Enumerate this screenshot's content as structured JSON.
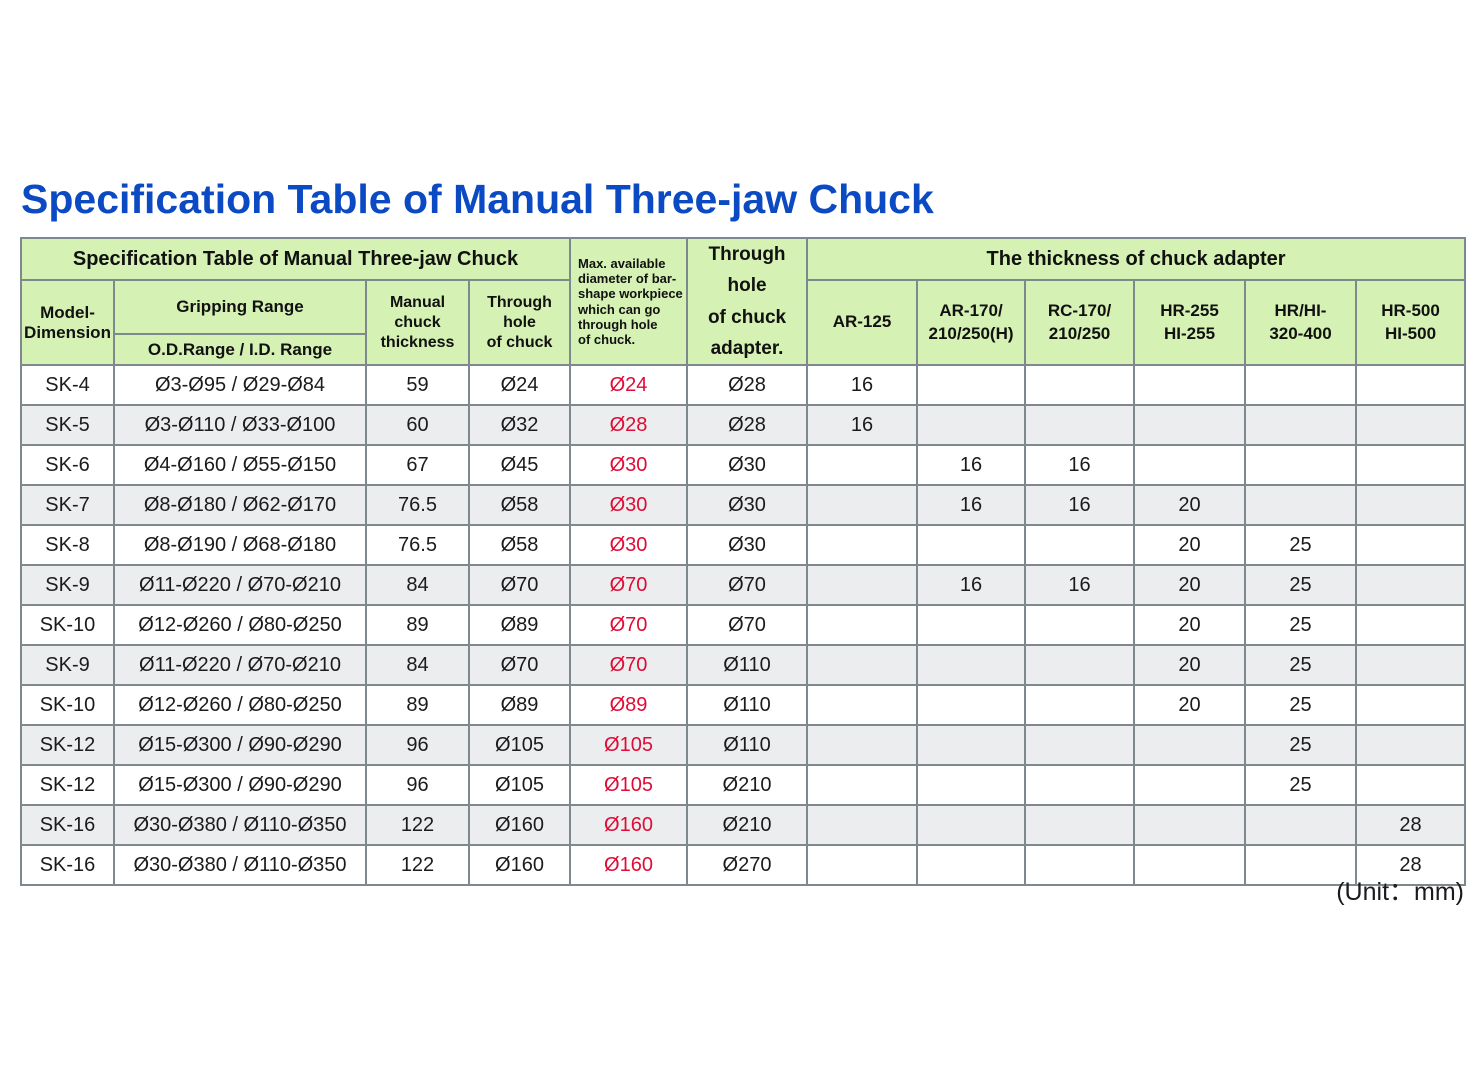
{
  "page": {
    "title": "Specification Table of Manual Three-jaw Chuck",
    "unit_note": "(Unit：mm)"
  },
  "colors": {
    "title_blue": "#0b4ac2",
    "header_green": "#d5f1b3",
    "alt_row_gray": "#ebedee",
    "red_value": "#e00b36",
    "border_gray": "#7d898d"
  },
  "table": {
    "header": {
      "spec_title": "Specification Table of Manual Three-jaw Chuck",
      "model": "Model-\nDimension",
      "gripping": "Gripping Range",
      "od_id": "O.D.Range  /  I.D. Range",
      "manual_thickness": "Manual\nchuck\nthickness",
      "through_hole": "Through\nhole\nof chuck",
      "max_bar": "Max. available\ndiameter of bar-\nshape workpiece\nwhich can go\nthrough hole\nof chuck.",
      "adapter_hole": "Through hole\nof chuck\nadapter.",
      "adapter_thickness": "The thickness of chuck adapter",
      "adapter_cols": [
        "AR-125",
        "AR-170/\n210/250(H)",
        "RC-170/\n210/250",
        "HR-255\nHI-255",
        "HR/HI-\n320-400",
        "HR-500\nHI-500"
      ]
    },
    "rows": [
      {
        "model": "SK-4",
        "gripping": "Ø3-Ø95  /  Ø29-Ø84",
        "thickness": "59",
        "through_hole": "Ø24",
        "max_bar": "Ø24",
        "adapter_hole": "Ø28",
        "adapters": [
          "16",
          "",
          "",
          "",
          "",
          ""
        ]
      },
      {
        "model": "SK-5",
        "gripping": "Ø3-Ø110 / Ø33-Ø100",
        "thickness": "60",
        "through_hole": "Ø32",
        "max_bar": "Ø28",
        "adapter_hole": "Ø28",
        "adapters": [
          "16",
          "",
          "",
          "",
          "",
          ""
        ]
      },
      {
        "model": "SK-6",
        "gripping": "Ø4-Ø160 / Ø55-Ø150",
        "thickness": "67",
        "through_hole": "Ø45",
        "max_bar": "Ø30",
        "adapter_hole": "Ø30",
        "adapters": [
          "",
          "16",
          "16",
          "",
          "",
          ""
        ]
      },
      {
        "model": "SK-7",
        "gripping": "Ø8-Ø180 / Ø62-Ø170",
        "thickness": "76.5",
        "through_hole": "Ø58",
        "max_bar": "Ø30",
        "adapter_hole": "Ø30",
        "adapters": [
          "",
          "16",
          "16",
          "20",
          "",
          ""
        ]
      },
      {
        "model": "SK-8",
        "gripping": "Ø8-Ø190 / Ø68-Ø180",
        "thickness": "76.5",
        "through_hole": "Ø58",
        "max_bar": "Ø30",
        "adapter_hole": "Ø30",
        "adapters": [
          "",
          "",
          "",
          "20",
          "25",
          ""
        ]
      },
      {
        "model": "SK-9",
        "gripping": "Ø11-Ø220 / Ø70-Ø210",
        "thickness": "84",
        "through_hole": "Ø70",
        "max_bar": "Ø70",
        "adapter_hole": "Ø70",
        "adapters": [
          "",
          "16",
          "16",
          "20",
          "25",
          ""
        ]
      },
      {
        "model": "SK-10",
        "gripping": "Ø12-Ø260 / Ø80-Ø250",
        "thickness": "89",
        "through_hole": "Ø89",
        "max_bar": "Ø70",
        "adapter_hole": "Ø70",
        "adapters": [
          "",
          "",
          "",
          "20",
          "25",
          ""
        ]
      },
      {
        "model": "SK-9",
        "gripping": "Ø11-Ø220 / Ø70-Ø210",
        "thickness": "84",
        "through_hole": "Ø70",
        "max_bar": "Ø70",
        "adapter_hole": "Ø110",
        "adapters": [
          "",
          "",
          "",
          "20",
          "25",
          ""
        ]
      },
      {
        "model": "SK-10",
        "gripping": "Ø12-Ø260 / Ø80-Ø250",
        "thickness": "89",
        "through_hole": "Ø89",
        "max_bar": "Ø89",
        "adapter_hole": "Ø110",
        "adapters": [
          "",
          "",
          "",
          "20",
          "25",
          ""
        ]
      },
      {
        "model": "SK-12",
        "gripping": "Ø15-Ø300 / Ø90-Ø290",
        "thickness": "96",
        "through_hole": "Ø105",
        "max_bar": "Ø105",
        "adapter_hole": "Ø110",
        "adapters": [
          "",
          "",
          "",
          "",
          "25",
          ""
        ]
      },
      {
        "model": "SK-12",
        "gripping": "Ø15-Ø300 / Ø90-Ø290",
        "thickness": "96",
        "through_hole": "Ø105",
        "max_bar": "Ø105",
        "adapter_hole": "Ø210",
        "adapters": [
          "",
          "",
          "",
          "",
          "25",
          ""
        ]
      },
      {
        "model": "SK-16",
        "gripping": "Ø30-Ø380 / Ø110-Ø350",
        "thickness": "122",
        "through_hole": "Ø160",
        "max_bar": "Ø160",
        "adapter_hole": "Ø210",
        "adapters": [
          "",
          "",
          "",
          "",
          "",
          "28"
        ]
      },
      {
        "model": "SK-16",
        "gripping": "Ø30-Ø380 / Ø110-Ø350",
        "thickness": "122",
        "through_hole": "Ø160",
        "max_bar": "Ø160",
        "adapter_hole": "Ø270",
        "adapters": [
          "",
          "",
          "",
          "",
          "",
          "28"
        ]
      }
    ]
  }
}
